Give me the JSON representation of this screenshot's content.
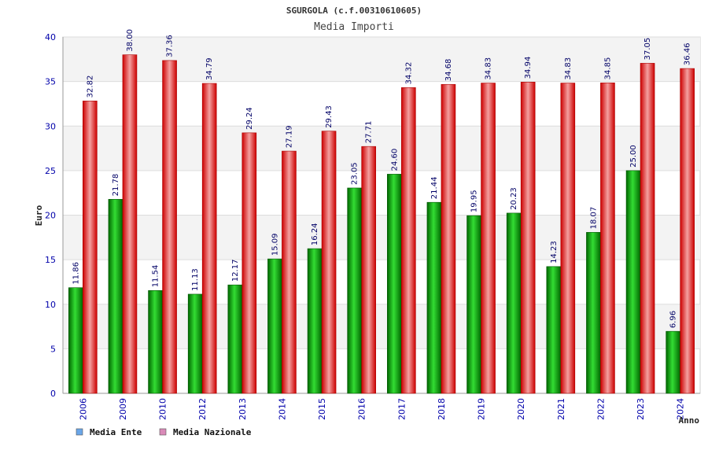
{
  "chart_data": {
    "type": "bar",
    "title": "SGURGOLA (c.f.00310610605)",
    "subtitle": "Media Importi",
    "ylabel": "Euro",
    "xlabel": "Anno",
    "ylim": [
      0,
      40
    ],
    "yticks": [
      0,
      5,
      10,
      15,
      20,
      25,
      30,
      35,
      40
    ],
    "grid": true,
    "legend_position": "bottom-left",
    "categories": [
      "2006",
      "2009",
      "2010",
      "2012",
      "2013",
      "2014",
      "2015",
      "2016",
      "2017",
      "2018",
      "2019",
      "2020",
      "2021",
      "2022",
      "2023",
      "2024"
    ],
    "series": [
      {
        "name": "Media Ente",
        "legend_color": "#6aa6e8",
        "bar_color": "#00aa00",
        "values": [
          11.86,
          21.78,
          11.54,
          11.13,
          12.17,
          15.09,
          16.24,
          23.05,
          24.6,
          21.44,
          19.95,
          20.23,
          14.23,
          18.07,
          25.0,
          6.96
        ],
        "labels": [
          "11.86",
          "21.78",
          "11.54",
          "11.13",
          "12.17",
          "15.09",
          "16.24",
          "23.05",
          "24.60",
          "21.44",
          "19.95",
          "20.23",
          "14.23",
          "18.07",
          "25.00",
          "6.96"
        ]
      },
      {
        "name": "Media Nazionale",
        "legend_color": "#d98ab8",
        "bar_color": "#ee1111",
        "values": [
          32.82,
          38.0,
          37.36,
          34.79,
          29.24,
          27.19,
          29.43,
          27.71,
          34.32,
          34.68,
          34.83,
          34.94,
          34.83,
          34.85,
          37.05,
          36.46
        ],
        "labels": [
          "32.82",
          "38.00",
          "37.36",
          "34.79",
          "29.24",
          "27.19",
          "29.43",
          "27.71",
          "34.32",
          "34.68",
          "34.83",
          "34.94",
          "34.83",
          "34.85",
          "37.05",
          "36.46"
        ]
      }
    ]
  }
}
